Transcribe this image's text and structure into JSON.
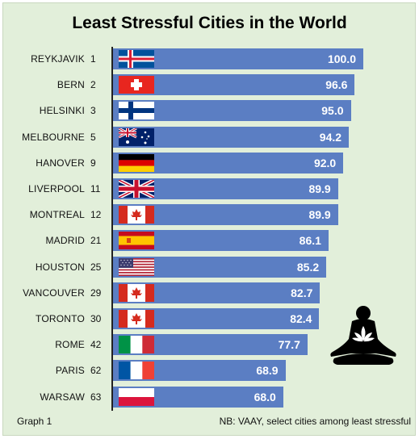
{
  "chart_data": {
    "type": "bar",
    "title": "Least Stressful Cities in the World",
    "categories": [
      "REYKJAVIK",
      "BERN",
      "HELSINKI",
      "MELBOURNE",
      "HANOVER",
      "LIVERPOOL",
      "MONTREAL",
      "MADRID",
      "HOUSTON",
      "VANCOUVER",
      "TORONTO",
      "ROME",
      "PARIS",
      "WARSAW"
    ],
    "ranks": [
      "1",
      "2",
      "3",
      "5",
      "9",
      "11",
      "12",
      "21",
      "25",
      "29",
      "30",
      "42",
      "62",
      "63"
    ],
    "values": [
      100.0,
      96.6,
      95.0,
      94.2,
      92.0,
      89.9,
      89.9,
      86.1,
      85.2,
      82.7,
      82.4,
      77.7,
      68.9,
      68.0
    ],
    "value_labels": [
      "100.0",
      "96.6",
      "95.0",
      "94.2",
      "92.0",
      "89.9",
      "89.9",
      "86.1",
      "85.2",
      "82.7",
      "82.4",
      "77.7",
      "68.9",
      "68.0"
    ],
    "flags": [
      "iceland-flag-icon",
      "switzerland-flag-icon",
      "finland-flag-icon",
      "australia-flag-icon",
      "germany-flag-icon",
      "united-kingdom-flag-icon",
      "canada-flag-icon",
      "spain-flag-icon",
      "united-states-flag-icon",
      "canada-flag-icon",
      "canada-flag-icon",
      "italy-flag-icon",
      "france-flag-icon",
      "poland-flag-icon"
    ],
    "orientation": "horizontal",
    "xlim": [
      0,
      100
    ],
    "bar_color": "#5b7ec3",
    "background_color": "#e2efda",
    "grid": false,
    "legend": "none"
  },
  "footer": {
    "left": "Graph 1",
    "right": "NB: VAAY, select cities among least stressful"
  },
  "decoration_icon": "meditating-person-lotus-icon"
}
